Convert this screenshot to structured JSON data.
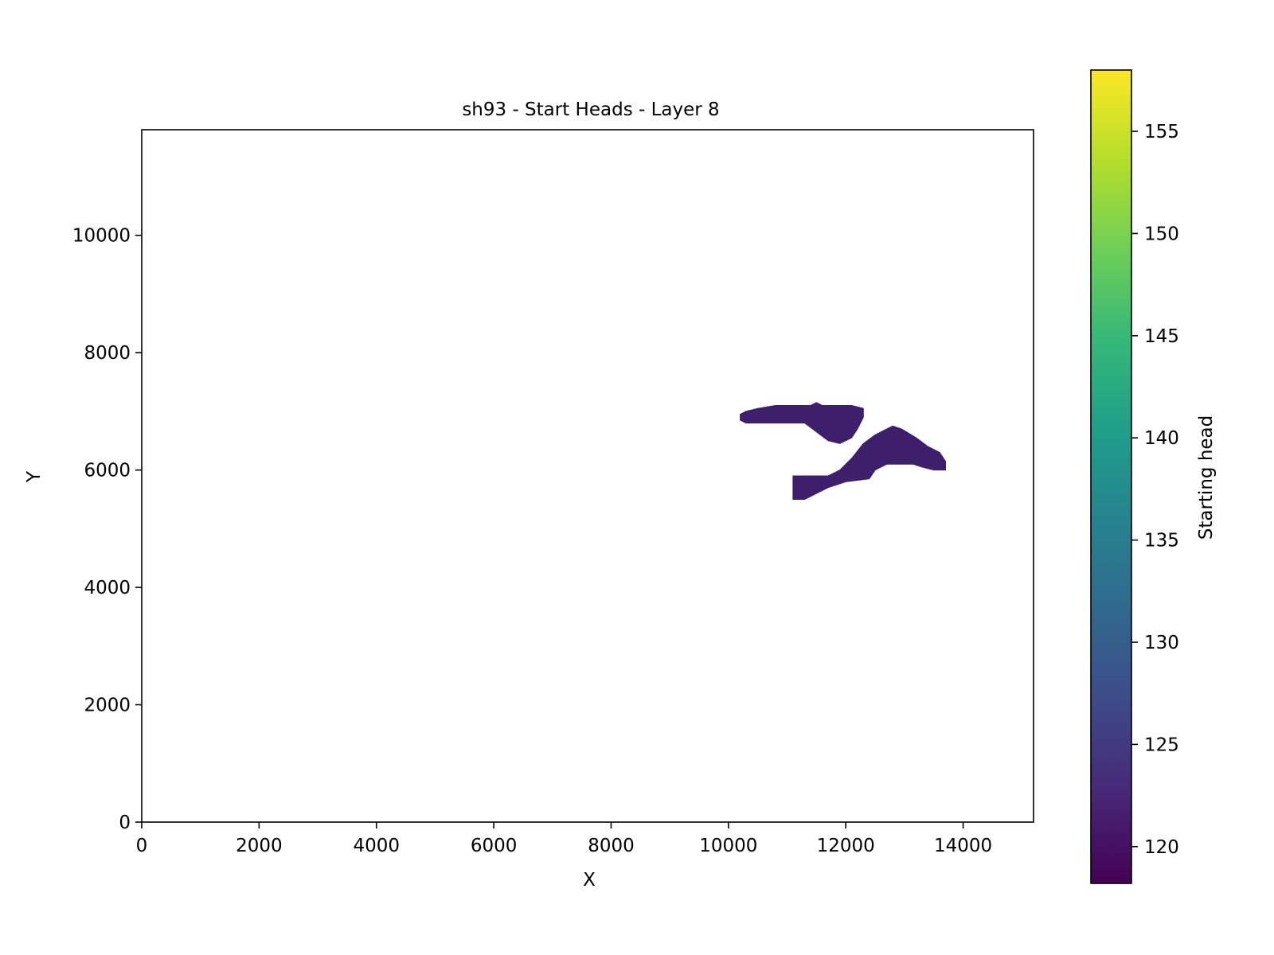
{
  "chart_data": {
    "type": "heatmap",
    "title": "sh93 - Start Heads - Layer 8",
    "xlabel": "X",
    "ylabel": "Y",
    "xlim": [
      0,
      15200
    ],
    "ylim": [
      0,
      11800
    ],
    "xticks": [
      0,
      2000,
      4000,
      6000,
      8000,
      10000,
      12000,
      14000
    ],
    "yticks": [
      0,
      2000,
      4000,
      6000,
      8000,
      10000
    ],
    "grid": false,
    "colormap": "viridis",
    "colorbar": {
      "label": "Starting head",
      "range": [
        118.2,
        158
      ],
      "ticks": [
        120,
        125,
        130,
        135,
        140,
        145,
        150,
        155
      ],
      "stops": [
        "#440154",
        "#482777",
        "#3e4a89",
        "#31688e",
        "#26828e",
        "#1f9e89",
        "#35b779",
        "#6ece58",
        "#b5de2b",
        "#fde725"
      ]
    },
    "regions": [
      {
        "name": "",
        "value": 122,
        "color": "#3e1f6c",
        "outline": [
          [
            10200,
            6950
          ],
          [
            10300,
            7000
          ],
          [
            10500,
            7050
          ],
          [
            10800,
            7100
          ],
          [
            11400,
            7100
          ],
          [
            11500,
            7150
          ],
          [
            11600,
            7100
          ],
          [
            12100,
            7100
          ],
          [
            12300,
            7050
          ],
          [
            12300,
            6900
          ],
          [
            12200,
            6700
          ],
          [
            12100,
            6550
          ],
          [
            11900,
            6450
          ],
          [
            11700,
            6500
          ],
          [
            11500,
            6650
          ],
          [
            11300,
            6800
          ],
          [
            10800,
            6800
          ],
          [
            10300,
            6800
          ],
          [
            10200,
            6850
          ]
        ]
      },
      {
        "name": "",
        "value": 122,
        "color": "#3e1f6c",
        "outline": [
          [
            11100,
            5500
          ],
          [
            11100,
            5900
          ],
          [
            11700,
            5900
          ],
          [
            11900,
            6000
          ],
          [
            12100,
            6200
          ],
          [
            12300,
            6450
          ],
          [
            12500,
            6600
          ],
          [
            12700,
            6700
          ],
          [
            12800,
            6750
          ],
          [
            12950,
            6700
          ],
          [
            13200,
            6550
          ],
          [
            13400,
            6400
          ],
          [
            13600,
            6300
          ],
          [
            13700,
            6150
          ],
          [
            13700,
            6000
          ],
          [
            13500,
            6000
          ],
          [
            13300,
            6050
          ],
          [
            13150,
            6100
          ],
          [
            12700,
            6100
          ],
          [
            12500,
            6000
          ],
          [
            12400,
            5850
          ],
          [
            12000,
            5800
          ],
          [
            11700,
            5700
          ],
          [
            11500,
            5600
          ],
          [
            11300,
            5500
          ]
        ]
      }
    ]
  }
}
